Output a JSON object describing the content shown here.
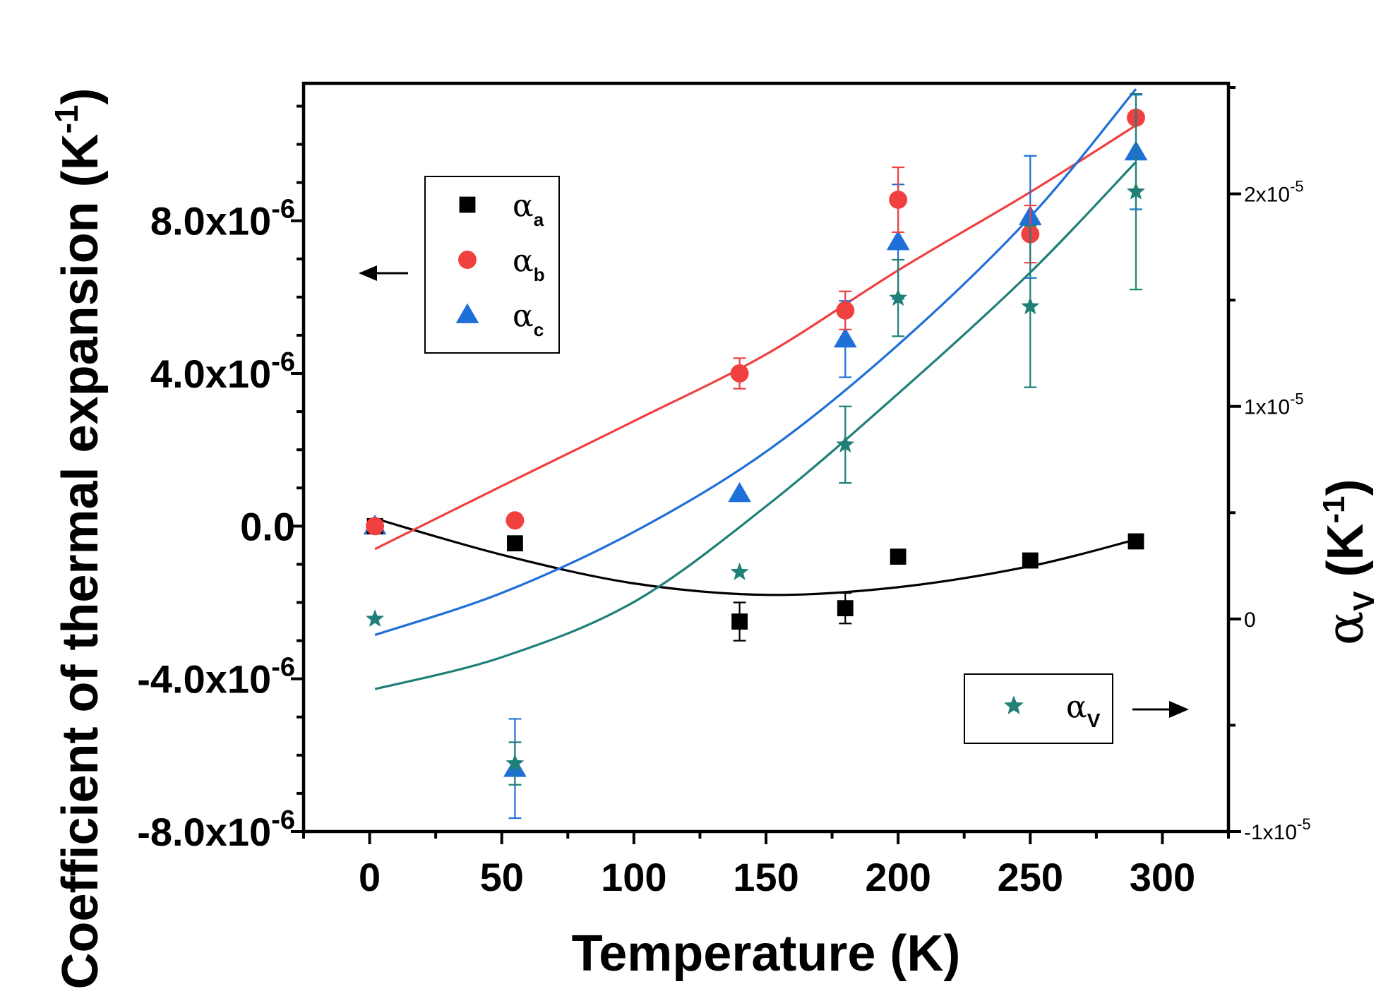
{
  "chart_data": {
    "type": "scatter",
    "xlabel": "Temperature (K)",
    "ylabel": "Coefficient of thermal expansion (K",
    "ylabel_sup": "-1",
    "y2label_main": "α",
    "y2label_sub": "V",
    "y2label_tail": " (K",
    "y2label_sup": "-1",
    "xlim": [
      -25,
      325
    ],
    "ylim": [
      -8e-06,
      1.16e-05
    ],
    "y2lim": [
      -1e-05,
      2.52e-05
    ],
    "x_ticks": [
      "0",
      "50",
      "100",
      "150",
      "200",
      "250",
      "300"
    ],
    "y_ticks": [
      {
        "mantissa": "8.0x10",
        "exp": "-6",
        "value": 8e-06
      },
      {
        "mantissa": "4.0x10",
        "exp": "-6",
        "value": 4e-06
      },
      {
        "mantissa": "0.0",
        "exp": "",
        "value": 0
      },
      {
        "mantissa": "-4.0x10",
        "exp": "-6",
        "value": -4e-06
      },
      {
        "mantissa": "-8.0x10",
        "exp": "-6",
        "value": -8e-06
      }
    ],
    "y2_ticks": [
      {
        "mantissa": "2x10",
        "exp": "-5",
        "value": 2e-05
      },
      {
        "mantissa": "1x10",
        "exp": "-5",
        "value": 1e-05
      },
      {
        "mantissa": "0",
        "exp": "",
        "value": 0
      },
      {
        "mantissa": "-1x10",
        "exp": "-5",
        "value": -1e-05
      }
    ],
    "series": [
      {
        "name": "α",
        "sub": "a",
        "axis": "left",
        "marker": "square",
        "color": "#000000",
        "points": [
          {
            "x": 2,
            "y": 0.0,
            "err": 0
          },
          {
            "x": 55,
            "y": -4.5e-07,
            "err": 0
          },
          {
            "x": 140,
            "y": -2.5e-06,
            "err": 5e-07
          },
          {
            "x": 180,
            "y": -2.15e-06,
            "err": 4e-07
          },
          {
            "x": 200,
            "y": -8e-07,
            "err": 0
          },
          {
            "x": 250,
            "y": -9e-07,
            "err": 0
          },
          {
            "x": 290,
            "y": -4e-07,
            "err": 0
          }
        ],
        "fit": [
          [
            2,
            2e-07
          ],
          [
            50,
            -7.5e-07
          ],
          [
            100,
            -1.5e-06
          ],
          [
            150,
            -1.8e-06
          ],
          [
            200,
            -1.6e-06
          ],
          [
            250,
            -1.05e-06
          ],
          [
            290,
            -3.5e-07
          ]
        ]
      },
      {
        "name": "α",
        "sub": "b",
        "axis": "left",
        "marker": "circle",
        "color": "#f04040",
        "points": [
          {
            "x": 2,
            "y": 0.0,
            "err": 0
          },
          {
            "x": 55,
            "y": 1.5e-07,
            "err": 0
          },
          {
            "x": 140,
            "y": 4e-06,
            "err": 4e-07
          },
          {
            "x": 180,
            "y": 5.65e-06,
            "err": 5e-07
          },
          {
            "x": 200,
            "y": 8.55e-06,
            "err": 8.5e-07
          },
          {
            "x": 250,
            "y": 7.65e-06,
            "err": 7.5e-07
          },
          {
            "x": 290,
            "y": 1.07e-05,
            "err": 0
          }
        ],
        "fit": [
          [
            2,
            -6e-07
          ],
          [
            50,
            1.05e-06
          ],
          [
            100,
            2.75e-06
          ],
          [
            150,
            4.5e-06
          ],
          [
            200,
            6.7e-06
          ],
          [
            250,
            8.75e-06
          ],
          [
            290,
            1.05e-05
          ]
        ]
      },
      {
        "name": "α",
        "sub": "c",
        "axis": "left",
        "marker": "triangle",
        "color": "#1f6fd8",
        "points": [
          {
            "x": 2,
            "y": 0.0,
            "err": 0
          },
          {
            "x": 55,
            "y": -6.35e-06,
            "err": 1.3e-06
          },
          {
            "x": 140,
            "y": 8.5e-07,
            "err": 0
          },
          {
            "x": 180,
            "y": 4.9e-06,
            "err": 1e-06
          },
          {
            "x": 200,
            "y": 7.45e-06,
            "err": 1.5e-06
          },
          {
            "x": 250,
            "y": 8.1e-06,
            "err": 1.6e-06
          },
          {
            "x": 290,
            "y": 9.8e-06,
            "err": 1.5e-06
          }
        ],
        "fit": [
          [
            2,
            -2.85e-06
          ],
          [
            50,
            -1.75e-06
          ],
          [
            100,
            -1.5e-07
          ],
          [
            150,
            1.95e-06
          ],
          [
            200,
            4.75e-06
          ],
          [
            250,
            8.1e-06
          ],
          [
            290,
            1.145e-05
          ]
        ]
      },
      {
        "name": "α",
        "sub": "V",
        "axis": "right",
        "marker": "star",
        "color": "#1f8078",
        "points": [
          {
            "x": 2,
            "y": 0.0,
            "err": 0
          },
          {
            "x": 55,
            "y": -6.8e-06,
            "err": 1e-06
          },
          {
            "x": 140,
            "y": 2.2e-06,
            "err": 0
          },
          {
            "x": 180,
            "y": 8.2e-06,
            "err": 1.8e-06
          },
          {
            "x": 200,
            "y": 1.51e-05,
            "err": 1.8e-06
          },
          {
            "x": 250,
            "y": 1.47e-05,
            "err": 3.8e-06
          },
          {
            "x": 290,
            "y": 2.01e-05,
            "err": 4.6e-06
          }
        ],
        "fit": [
          [
            2,
            -3.3e-06
          ],
          [
            50,
            -1.8e-06
          ],
          [
            100,
            8e-07
          ],
          [
            150,
            5.3e-06
          ],
          [
            200,
            1.06e-05
          ],
          [
            250,
            1.63e-05
          ],
          [
            290,
            2.15e-05
          ]
        ]
      }
    ],
    "legend": {
      "placement": "upper-left and lower-right",
      "left_arrow": "←",
      "right_arrow": "→"
    }
  }
}
